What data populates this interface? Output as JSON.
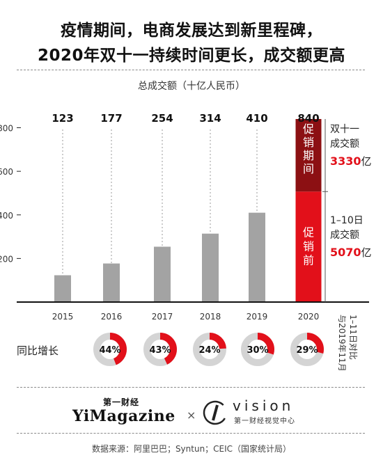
{
  "title_line1": "疫情期间，电商发展达到新里程碑，",
  "title_line2": "2020年双十一持续时间更长，成交额更高",
  "chart_data": {
    "type": "bar",
    "title": "疫情期间，电商发展达到新里程碑，2020年双十一持续时间更长，成交额更高",
    "subtitle": "总成交额（十亿人民币）",
    "categories": [
      "2015",
      "2016",
      "2017",
      "2018",
      "2019",
      "2020"
    ],
    "values": [
      123,
      177,
      254,
      314,
      410,
      840
    ],
    "value_labels": [
      "123",
      "177",
      "254",
      "314",
      "410",
      "840"
    ],
    "ylim": [
      0,
      840
    ],
    "yticks": [
      200,
      400,
      600,
      800
    ],
    "y_tick_labels": [
      "200",
      "400",
      "600",
      "800"
    ],
    "grid": "vertical-dashed",
    "stacked_2020": [
      {
        "name": "促销前",
        "value": 507,
        "color": "#e2101a"
      },
      {
        "name": "促销期间",
        "value": 333,
        "color": "#8c1013"
      }
    ],
    "colors": {
      "bar": "#a3a3a3",
      "presale": "#e2101a",
      "festival": "#8c1013",
      "donut_red": "#e2101a",
      "donut_grey": "#d4d4d4"
    },
    "annotations": {
      "festival_line1": "双十一",
      "festival_line2": "成交额",
      "festival_value": "3330",
      "festival_unit": "亿",
      "presale_line1": "1–10日",
      "presale_line2": "成交额",
      "presale_value": "5070",
      "presale_unit": "亿",
      "festival_vertical": "促销期间",
      "presale_vertical": "促销前"
    },
    "growth": {
      "label": "同比增长",
      "values": [
        44,
        43,
        24,
        30,
        29
      ],
      "labels": [
        "44%",
        "43%",
        "24%",
        "30%",
        "29%"
      ],
      "note": "1–11日对比与2019年11月"
    }
  },
  "logos": {
    "yimag_cn": "第一财经",
    "yimag_en": "YiMagazine",
    "times": "×",
    "vision_en": "vision",
    "vision_cn": "第一财经视觉中心"
  },
  "source": "数据来源：阿里巴巴；Syntun；CEIC（国家统计局）"
}
